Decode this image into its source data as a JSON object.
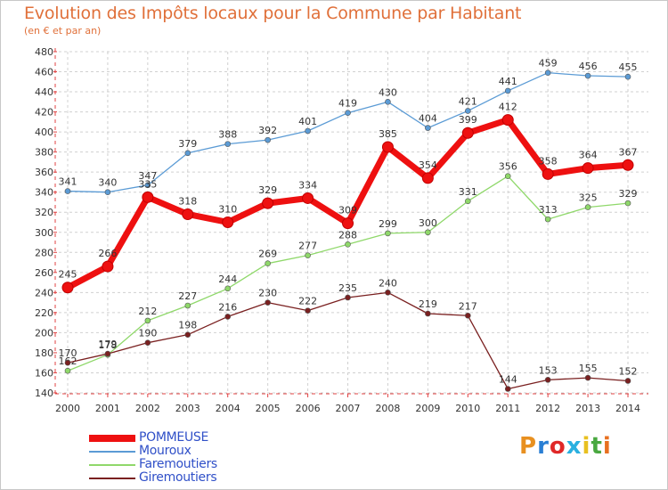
{
  "title": "Evolution des Impôts locaux pour la Commune par Habitant",
  "subtitle": "(en € et par an)",
  "logo": {
    "text": "Proxiti",
    "colors": [
      "#e89020",
      "#2a7fd4",
      "#e02828",
      "#2ab0e0",
      "#e8c020",
      "#49a840",
      "#e87020"
    ]
  },
  "chart_data": {
    "type": "line",
    "x": [
      "2000",
      "2001",
      "2002",
      "2003",
      "2004",
      "2005",
      "2006",
      "2007",
      "2008",
      "2009",
      "2010",
      "2011",
      "2012",
      "2013",
      "2014"
    ],
    "ylim": [
      140,
      480
    ],
    "yticks": [
      140,
      160,
      180,
      200,
      220,
      240,
      260,
      280,
      300,
      320,
      340,
      360,
      380,
      400,
      420,
      440,
      460,
      480
    ],
    "grid": true,
    "legend_position": "bottom-left",
    "series": [
      {
        "name": "Mouroux",
        "color": "#5b9bd5",
        "values": [
          341,
          340,
          347,
          379,
          388,
          392,
          401,
          419,
          430,
          404,
          421,
          441,
          459,
          456,
          455
        ]
      },
      {
        "name": "Faremoutiers",
        "color": "#8fd86a",
        "values": [
          162,
          178,
          212,
          227,
          244,
          269,
          277,
          288,
          299,
          300,
          331,
          356,
          313,
          325,
          329
        ]
      },
      {
        "name": "Giremoutiers",
        "color": "#7a2020",
        "values": [
          170,
          179,
          190,
          198,
          216,
          230,
          222,
          235,
          240,
          219,
          217,
          144,
          153,
          155,
          152
        ]
      },
      {
        "name": "POMMEUSE",
        "color": "#ee1010",
        "values": [
          245,
          266,
          335,
          318,
          310,
          329,
          334,
          309,
          385,
          354,
          399,
          412,
          358,
          364,
          367
        ]
      }
    ],
    "legend": [
      "POMMEUSE",
      "Mouroux",
      "Faremoutiers",
      "Giremoutiers"
    ]
  }
}
